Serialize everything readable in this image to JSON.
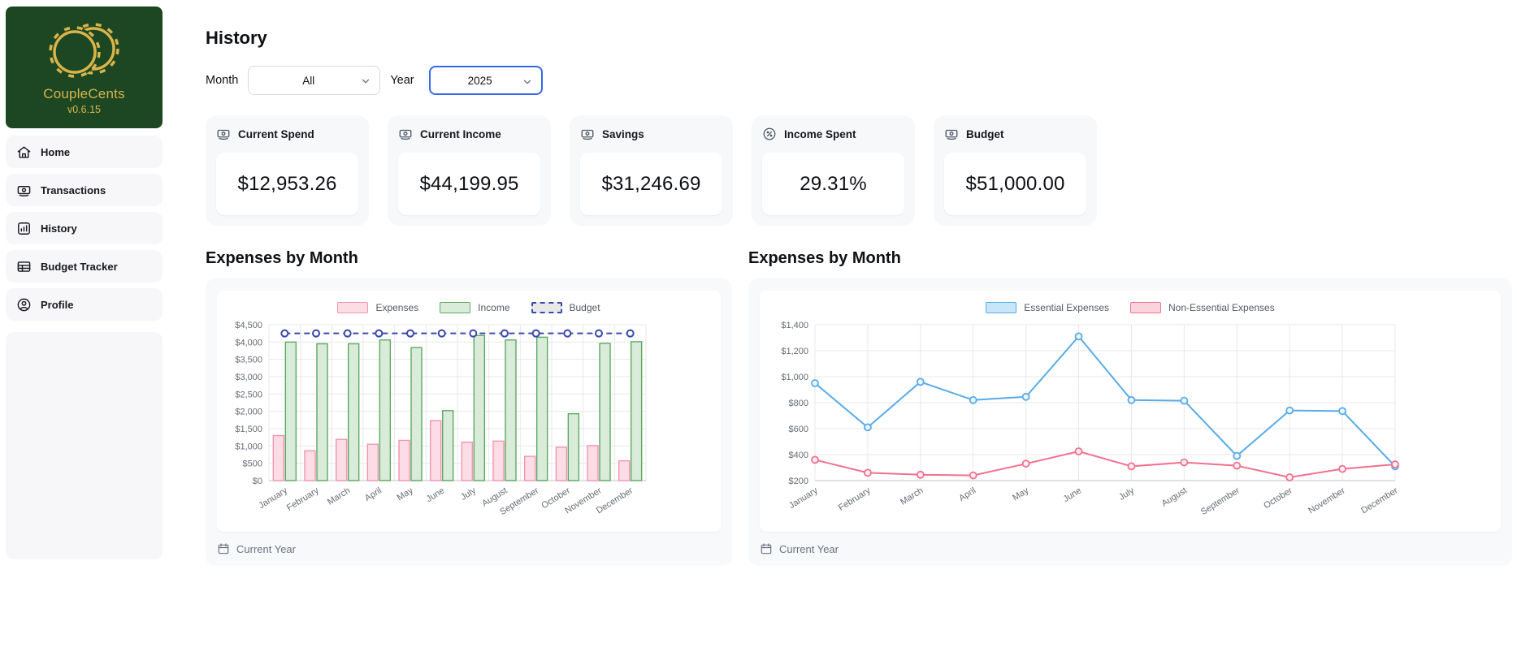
{
  "app": {
    "name": "CoupleCents",
    "version": "v0.6.15"
  },
  "colors": {
    "sidebar_green": "#1d4723",
    "gold": "#d8b44a",
    "expense_fill": "#fcdde6",
    "expense_border": "#f295ae",
    "income_fill": "#d9ecd9",
    "income_border": "#5ca963",
    "budget_line": "#3949ab",
    "essential_line": "#58abe8",
    "essential_marker_fill": "#eaf5fd",
    "nonessential_line": "#f2708f",
    "nonessential_marker_fill": "#fdeef2",
    "grid": "#e8e8ea",
    "axis": "#cfcfd4",
    "tick_text": "#666b73",
    "year_select_focus": "#3569e8"
  },
  "sidebar": {
    "items": [
      {
        "label": "Home",
        "icon": "home-icon"
      },
      {
        "label": "Transactions",
        "icon": "cash-icon"
      },
      {
        "label": "History",
        "icon": "chart-bars-icon"
      },
      {
        "label": "Budget Tracker",
        "icon": "table-icon"
      },
      {
        "label": "Profile",
        "icon": "person-circle-icon"
      }
    ]
  },
  "header": {
    "title": "History",
    "month_label": "Month",
    "month_value": "All",
    "year_label": "Year",
    "year_value": "2025"
  },
  "stats": [
    {
      "label": "Current Spend",
      "value": "$12,953.26",
      "icon": "cash-icon"
    },
    {
      "label": "Current Income",
      "value": "$44,199.95",
      "icon": "cash-icon"
    },
    {
      "label": "Savings",
      "value": "$31,246.69",
      "icon": "cash-icon"
    },
    {
      "label": "Income Spent",
      "value": "29.31%",
      "icon": "percent-circle-icon"
    },
    {
      "label": "Budget",
      "value": "$51,000.00",
      "icon": "cash-icon"
    }
  ],
  "charts": {
    "left_title": "Expenses by Month",
    "right_title": "Expenses by Month",
    "footer_label": "Current Year"
  },
  "chart_data": [
    {
      "type": "bar",
      "title": "Expenses by Month",
      "categories": [
        "January",
        "February",
        "March",
        "April",
        "May",
        "June",
        "July",
        "August",
        "September",
        "October",
        "November",
        "December"
      ],
      "series": [
        {
          "name": "Expenses",
          "values": [
            1300,
            860,
            1190,
            1050,
            1160,
            1730,
            1110,
            1140,
            700,
            960,
            1010,
            570
          ]
        },
        {
          "name": "Income",
          "values": [
            4000,
            3950,
            3950,
            4060,
            3840,
            2020,
            4190,
            4060,
            4140,
            1930,
            3960,
            4010
          ]
        },
        {
          "name": "Budget",
          "values": [
            4250,
            4250,
            4250,
            4250,
            4250,
            4250,
            4250,
            4250,
            4250,
            4250,
            4250,
            4250
          ]
        }
      ],
      "ylim": [
        0,
        4500
      ],
      "ytick_step": 500,
      "ylabel_format": "currency",
      "grid": true,
      "legend_position": "top"
    },
    {
      "type": "line",
      "title": "Expenses by Month",
      "categories": [
        "January",
        "February",
        "March",
        "April",
        "May",
        "June",
        "July",
        "August",
        "September",
        "October",
        "November",
        "December"
      ],
      "series": [
        {
          "name": "Essential Expenses",
          "values": [
            950,
            610,
            960,
            820,
            845,
            1310,
            820,
            815,
            390,
            740,
            735,
            310
          ]
        },
        {
          "name": "Non-Essential Expenses",
          "values": [
            360,
            260,
            245,
            240,
            330,
            425,
            310,
            340,
            315,
            225,
            290,
            325
          ]
        }
      ],
      "ylim": [
        200,
        1400
      ],
      "ytick_step": 200,
      "ylabel_format": "currency",
      "grid": true,
      "legend_position": "top"
    }
  ]
}
